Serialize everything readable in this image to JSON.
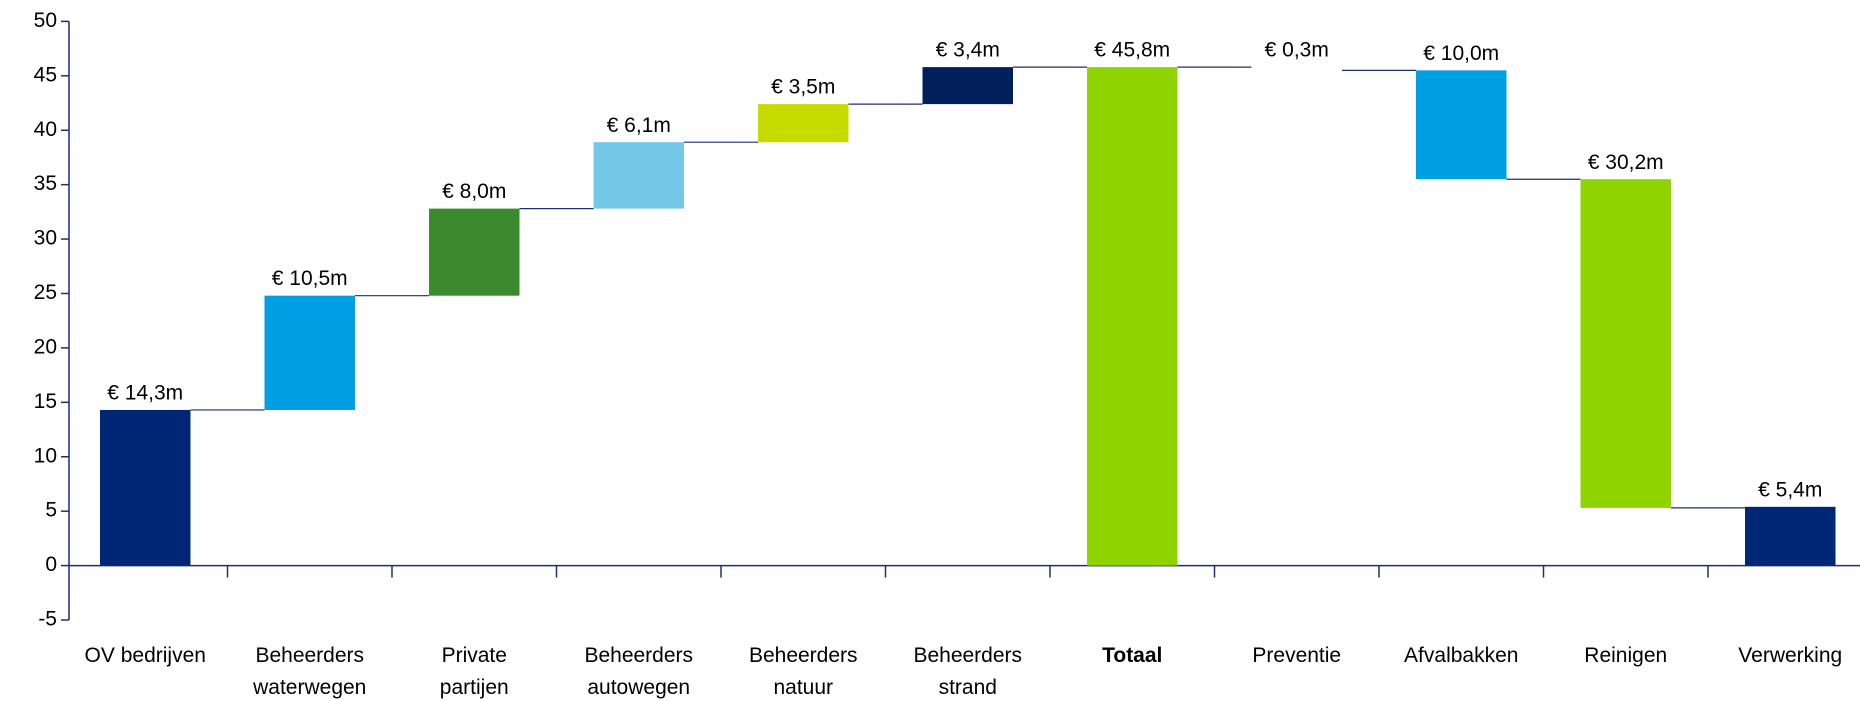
{
  "chart_data": {
    "type": "waterfall",
    "categories": [
      "OV bedrijven",
      "Beheerders\nwaterwegen",
      "Private\npartijen",
      "Beheerders\nautowegen",
      "Beheerders\nnatuur",
      "Beheerders\nstrand",
      "Totaal",
      "Preventie",
      "Afvalbakken",
      "Reinigen",
      "Verwerking"
    ],
    "values": [
      14.3,
      10.5,
      8.0,
      6.1,
      3.5,
      3.4,
      45.8,
      -0.3,
      -10.0,
      -30.2,
      5.4
    ],
    "value_labels": [
      "€ 14,3m",
      "€ 10,5m",
      "€ 8,0m",
      "€ 6,1m",
      "€ 3,5m",
      "€ 3,4m",
      "€ 45,8m",
      "€ 0,3m",
      "€ 10,0m",
      "€ 30,2m",
      "€ 5,4m"
    ],
    "is_total": [
      false,
      false,
      false,
      false,
      false,
      false,
      true,
      false,
      false,
      false,
      true
    ],
    "colors": [
      "#002776",
      "#009fe3",
      "#3c8a2e",
      "#74c7e6",
      "#c6dc00",
      "#001f5b",
      "#8fd400",
      "#ffffff",
      "#009fe3",
      "#8fd400",
      "#002776"
    ],
    "bold_category_index": 6,
    "ylim": [
      -5,
      50
    ],
    "yticks": [
      -5,
      0,
      5,
      10,
      15,
      20,
      25,
      30,
      35,
      40,
      45,
      50
    ]
  }
}
